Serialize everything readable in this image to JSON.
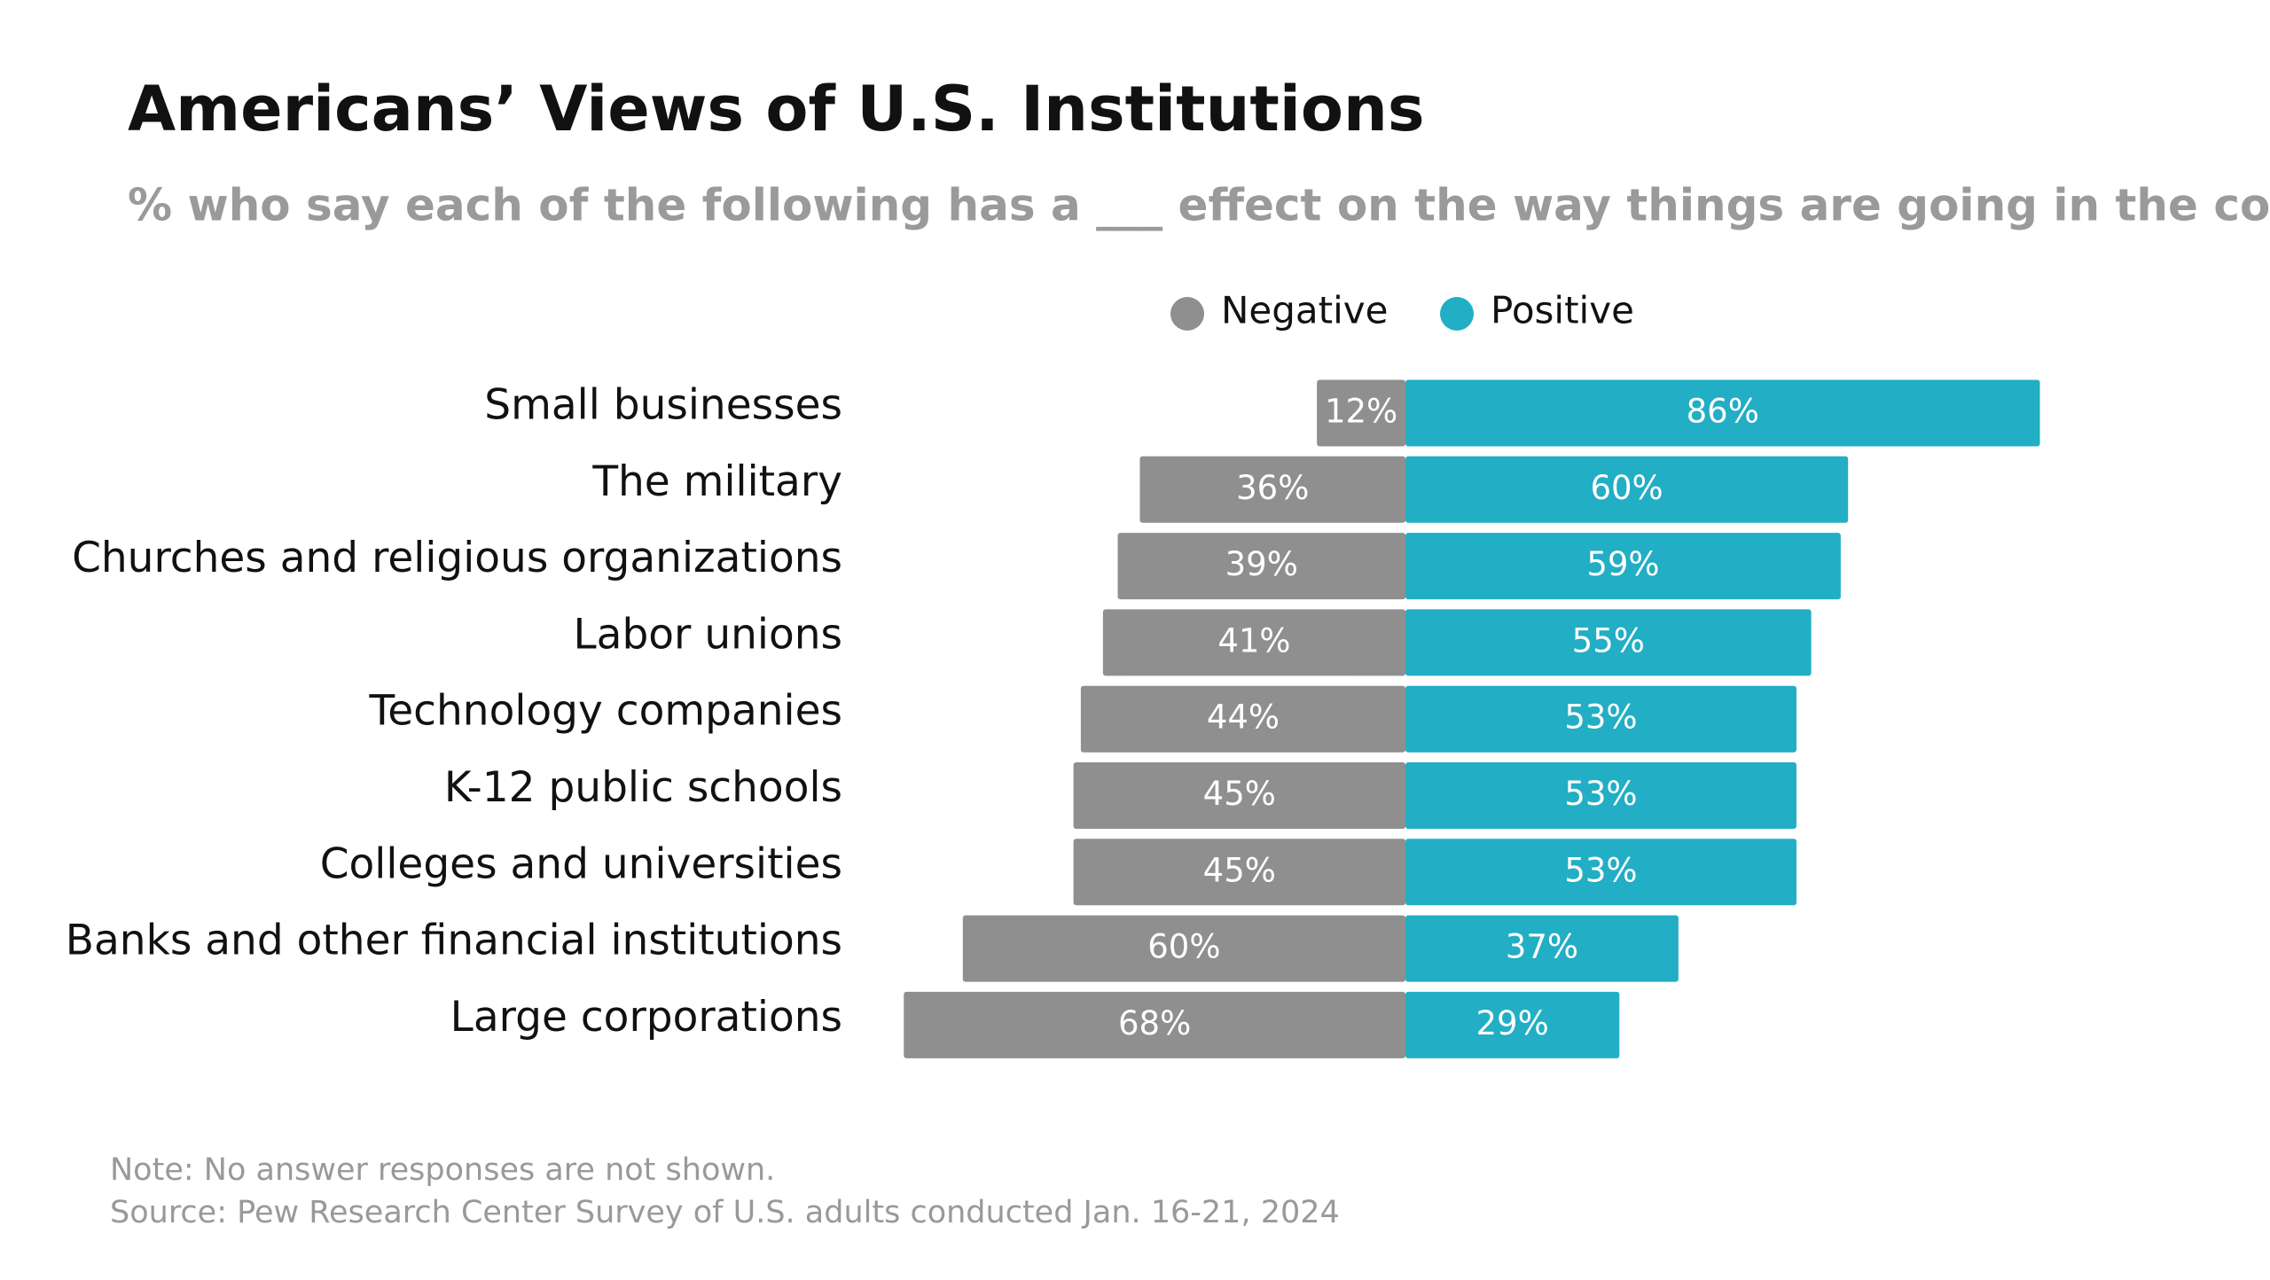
{
  "chart_data": {
    "type": "diverging_bar",
    "title": "Americans’ Views of U.S. Institutions",
    "subtitle": "% who say each of the following has a ___ effect on the way things are going in the country",
    "categories": [
      "Small businesses",
      "The military",
      "Churches and religious organizations",
      "Labor unions",
      "Technology companies",
      "K-12 public schools",
      "Colleges and universities",
      "Banks and other financial institutions",
      "Large corporations"
    ],
    "series": [
      {
        "name": "Negative",
        "color": "#8f8f8f",
        "values": [
          12,
          36,
          39,
          41,
          44,
          45,
          45,
          60,
          68
        ],
        "value_labels": [
          "12%",
          "36%",
          "39%",
          "41%",
          "44%",
          "45%",
          "45%",
          "60%",
          "68%"
        ]
      },
      {
        "name": "Positive",
        "color": "#22aec4",
        "values": [
          86,
          60,
          59,
          55,
          53,
          53,
          53,
          37,
          29
        ],
        "value_labels": [
          "86%",
          "60%",
          "59%",
          "55%",
          "53%",
          "53%",
          "53%",
          "37%",
          "29%"
        ]
      }
    ],
    "note": "Note: No answer responses are not shown.",
    "source": "Source: Pew Research Center Survey of U.S. adults conducted Jan. 16-21, 2024"
  }
}
